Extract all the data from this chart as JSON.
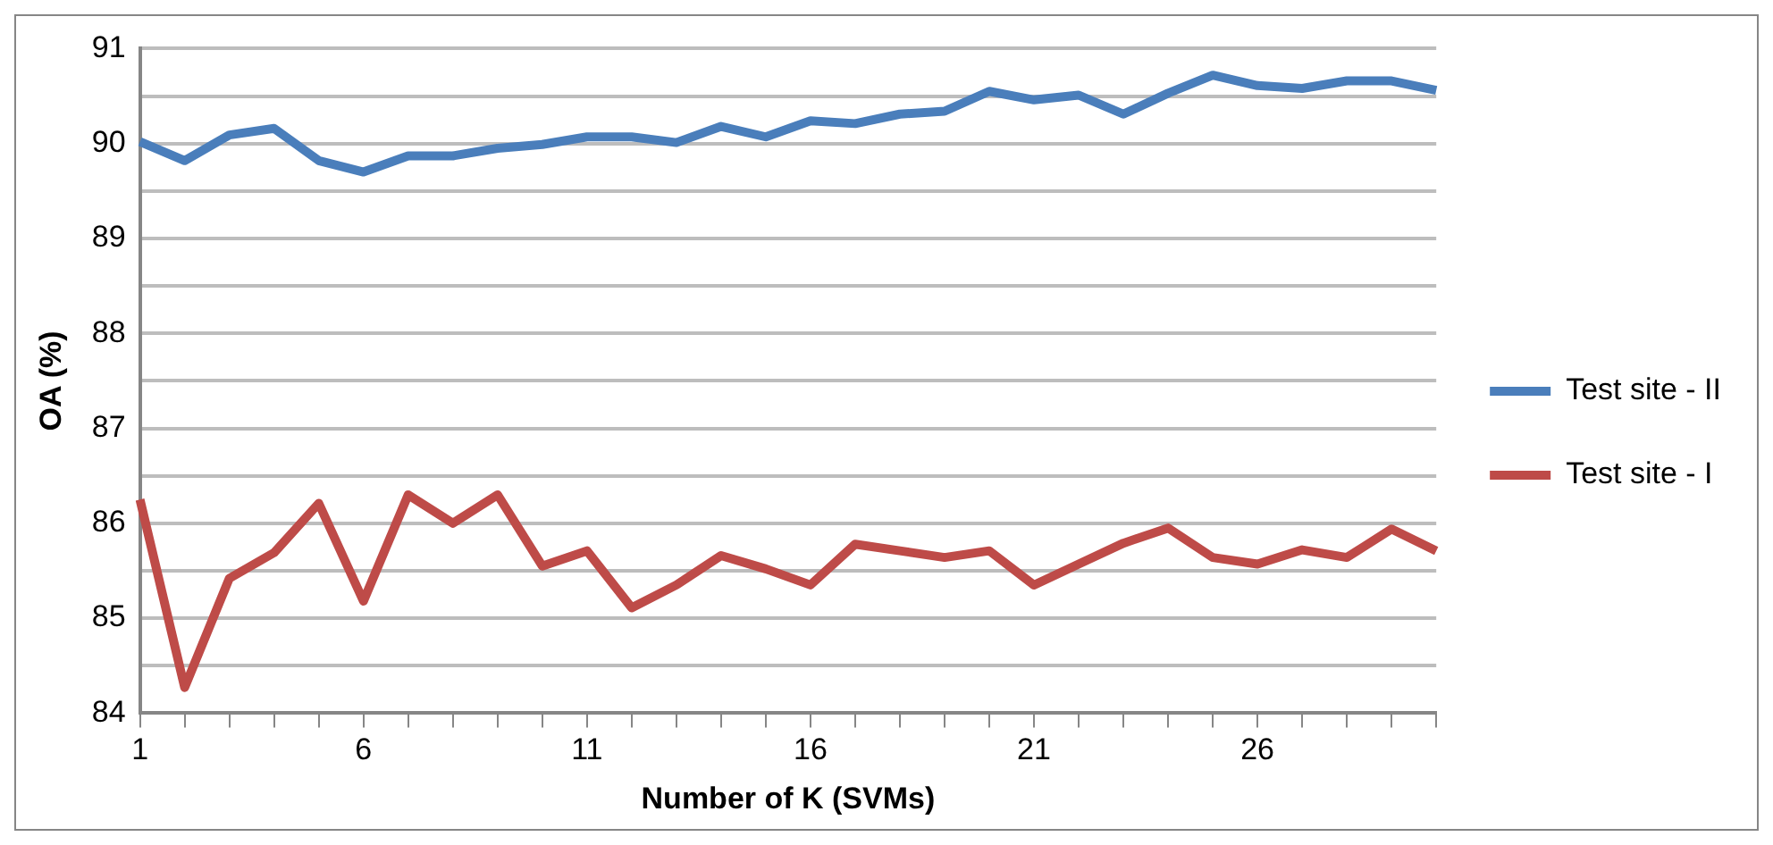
{
  "chart_data": {
    "type": "line",
    "xlabel": "Number of K (SVMs)",
    "ylabel": "OA (%)",
    "categories": [
      "1",
      null,
      null,
      null,
      null,
      "6",
      null,
      null,
      null,
      null,
      "11",
      null,
      null,
      null,
      null,
      "16",
      null,
      null,
      null,
      null,
      "21",
      null,
      null,
      null,
      null,
      "26",
      null,
      null,
      null,
      null
    ],
    "series": [
      {
        "name": "Test site - II",
        "color": "#4a7ebb",
        "values": [
          90.02,
          89.82,
          90.09,
          90.16,
          89.82,
          89.7,
          89.87,
          89.87,
          89.95,
          89.99,
          90.07,
          90.07,
          90.01,
          90.18,
          90.07,
          90.24,
          90.21,
          90.31,
          90.34,
          90.55,
          90.46,
          90.51,
          90.31,
          90.53,
          90.72,
          90.61,
          90.58,
          90.66,
          90.66,
          90.56
        ]
      },
      {
        "name": "Test site - I",
        "color": "#be4b48",
        "values": [
          86.25,
          84.27,
          85.42,
          85.69,
          86.21,
          85.18,
          86.3,
          86.0,
          86.3,
          85.55,
          85.71,
          85.11,
          85.35,
          85.66,
          85.52,
          85.35,
          85.78,
          85.71,
          85.64,
          85.71,
          85.35,
          85.57,
          85.79,
          85.95,
          85.64,
          85.57,
          85.72,
          85.64,
          85.94,
          85.71
        ]
      }
    ],
    "ylim": [
      84,
      91
    ],
    "yticks": [
      84,
      {
        "value": 84.5,
        "label": null
      },
      85,
      {
        "value": 85.5,
        "label": null
      },
      86,
      {
        "value": 86.5,
        "label": null
      },
      87,
      {
        "value": 87.5,
        "label": null
      },
      88,
      {
        "value": 88.5,
        "label": null
      },
      89,
      {
        "value": 89.5,
        "label": null
      },
      90,
      {
        "value": 90.5,
        "label": null
      },
      91
    ],
    "grid": "y",
    "legend": "right",
    "marker": "none",
    "line_style": "solid"
  }
}
